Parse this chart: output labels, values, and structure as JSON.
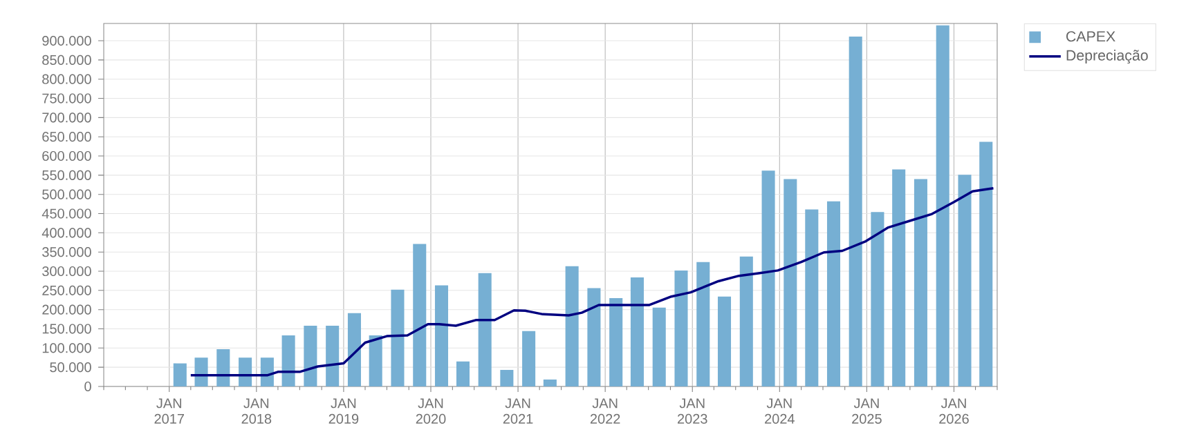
{
  "chart_data": {
    "type": "bar",
    "series": [
      {
        "name": "CAPEX",
        "color": "#76afd3",
        "x": [
          "2017-02-15",
          "2017-05-15",
          "2017-08-15",
          "2017-11-15",
          "2018-02-15",
          "2018-05-15",
          "2018-08-15",
          "2018-11-15",
          "2019-02-15",
          "2019-05-15",
          "2019-08-15",
          "2019-11-15",
          "2020-02-15",
          "2020-05-15",
          "2020-08-15",
          "2020-11-15",
          "2021-02-15",
          "2021-05-15",
          "2021-08-15",
          "2021-11-15",
          "2022-02-15",
          "2022-05-15",
          "2022-08-15",
          "2022-11-15",
          "2023-02-15",
          "2023-05-15",
          "2023-08-15",
          "2023-11-15",
          "2024-02-15",
          "2024-05-15",
          "2024-08-15",
          "2024-11-15",
          "2025-02-15",
          "2025-05-15",
          "2025-08-15",
          "2025-11-15",
          "2026-02-15",
          "2026-05-15"
        ],
        "values": [
          60000,
          75000,
          97000,
          75000,
          75000,
          133000,
          158000,
          158000,
          191000,
          133000,
          252000,
          371000,
          263000,
          65000,
          295000,
          43000,
          144000,
          18000,
          313000,
          256000,
          230000,
          284000,
          205000,
          302000,
          324000,
          234000,
          338000,
          562000,
          540000,
          461000,
          482000,
          911000,
          454000,
          565000,
          540000,
          940000,
          551000,
          637000
        ]
      },
      {
        "name": "Depreciação",
        "type": "line",
        "color": "#000080",
        "x": [
          "2017-04-01",
          "2018-02-15",
          "2018-04-01",
          "2018-07-01",
          "2018-09-15",
          "2019-01-01",
          "2019-04-01",
          "2019-07-01",
          "2019-09-25",
          "2019-12-20",
          "2020-02-05",
          "2020-04-15",
          "2020-07-10",
          "2020-09-25",
          "2020-12-15",
          "2021-02-01",
          "2021-04-15",
          "2021-08-01",
          "2021-09-25",
          "2021-12-05",
          "2022-02-20",
          "2022-07-05",
          "2022-10-05",
          "2022-12-25",
          "2023-04-20",
          "2023-07-15",
          "2023-10-10",
          "2023-12-25",
          "2024-04-01",
          "2024-07-05",
          "2024-09-20",
          "2024-12-28",
          "2025-04-01",
          "2025-07-05",
          "2025-10-01",
          "2026-01-01",
          "2026-03-20",
          "2026-06-15"
        ],
        "values": [
          29000,
          29000,
          38000,
          38000,
          52000,
          60000,
          114000,
          131000,
          133000,
          162000,
          162000,
          158000,
          173000,
          173000,
          198000,
          197000,
          188000,
          185000,
          192000,
          212000,
          212000,
          212000,
          234000,
          245000,
          274000,
          288000,
          295000,
          302000,
          324000,
          349000,
          353000,
          378000,
          414000,
          432000,
          449000,
          480000,
          508000,
          516000
        ]
      }
    ],
    "xlim": [
      "2016-04-01",
      "2026-07-01"
    ],
    "xticks": [
      {
        "value": "2016-04-01",
        "label": null
      },
      {
        "value": "2016-07-01",
        "label": null
      },
      {
        "value": "2016-10-01",
        "label": null
      },
      {
        "value": "2017-01-01",
        "label": "JAN 2017"
      },
      {
        "value": "2017-04-01",
        "label": null
      },
      {
        "value": "2017-07-01",
        "label": null
      },
      {
        "value": "2017-10-01",
        "label": null
      },
      {
        "value": "2018-01-01",
        "label": "JAN 2018"
      },
      {
        "value": "2018-04-01",
        "label": null
      },
      {
        "value": "2018-07-01",
        "label": null
      },
      {
        "value": "2018-10-01",
        "label": null
      },
      {
        "value": "2019-01-01",
        "label": "JAN 2019"
      },
      {
        "value": "2019-04-01",
        "label": null
      },
      {
        "value": "2019-07-01",
        "label": null
      },
      {
        "value": "2019-10-01",
        "label": null
      },
      {
        "value": "2020-01-01",
        "label": "JAN 2020"
      },
      {
        "value": "2020-04-01",
        "label": null
      },
      {
        "value": "2020-07-01",
        "label": null
      },
      {
        "value": "2020-10-01",
        "label": null
      },
      {
        "value": "2021-01-01",
        "label": "JAN 2021"
      },
      {
        "value": "2021-04-01",
        "label": null
      },
      {
        "value": "2021-07-01",
        "label": null
      },
      {
        "value": "2021-10-01",
        "label": null
      },
      {
        "value": "2022-01-01",
        "label": "JAN 2022"
      },
      {
        "value": "2022-04-01",
        "label": null
      },
      {
        "value": "2022-07-01",
        "label": null
      },
      {
        "value": "2022-10-01",
        "label": null
      },
      {
        "value": "2023-01-01",
        "label": "JAN 2023"
      },
      {
        "value": "2023-04-01",
        "label": null
      },
      {
        "value": "2023-07-01",
        "label": null
      },
      {
        "value": "2023-10-01",
        "label": null
      },
      {
        "value": "2024-01-01",
        "label": "JAN 2024"
      },
      {
        "value": "2024-04-01",
        "label": null
      },
      {
        "value": "2024-07-01",
        "label": null
      },
      {
        "value": "2024-10-01",
        "label": null
      },
      {
        "value": "2025-01-01",
        "label": "JAN 2025"
      },
      {
        "value": "2025-04-01",
        "label": null
      },
      {
        "value": "2025-07-01",
        "label": null
      },
      {
        "value": "2025-10-01",
        "label": null
      },
      {
        "value": "2026-01-01",
        "label": "JAN 2026"
      },
      {
        "value": "2026-04-01",
        "label": null
      },
      {
        "value": "2026-07-01",
        "label": null
      }
    ],
    "ylim": [
      0,
      945000
    ],
    "yticks": [
      0,
      {
        "value": 50000,
        "label": "50.000"
      },
      {
        "value": 100000,
        "label": "100.000"
      },
      {
        "value": 150000,
        "label": "150.000"
      },
      {
        "value": 200000,
        "label": "200.000"
      },
      {
        "value": 250000,
        "label": "250.000"
      },
      {
        "value": 300000,
        "label": "300.000"
      },
      {
        "value": 350000,
        "label": "350.000"
      },
      {
        "value": 400000,
        "label": "400.000"
      },
      {
        "value": 450000,
        "label": "450.000"
      },
      {
        "value": 500000,
        "label": "500.000"
      },
      {
        "value": 550000,
        "label": "550.000"
      },
      {
        "value": 600000,
        "label": "600.000"
      },
      {
        "value": 650000,
        "label": "650.000"
      },
      {
        "value": 700000,
        "label": "700.000"
      },
      {
        "value": 750000,
        "label": "750.000"
      },
      {
        "value": 800000,
        "label": "800.000"
      },
      {
        "value": 850000,
        "label": "850.000"
      },
      {
        "value": 900000,
        "label": "900.000"
      }
    ],
    "grid": true,
    "legend": "top right"
  }
}
